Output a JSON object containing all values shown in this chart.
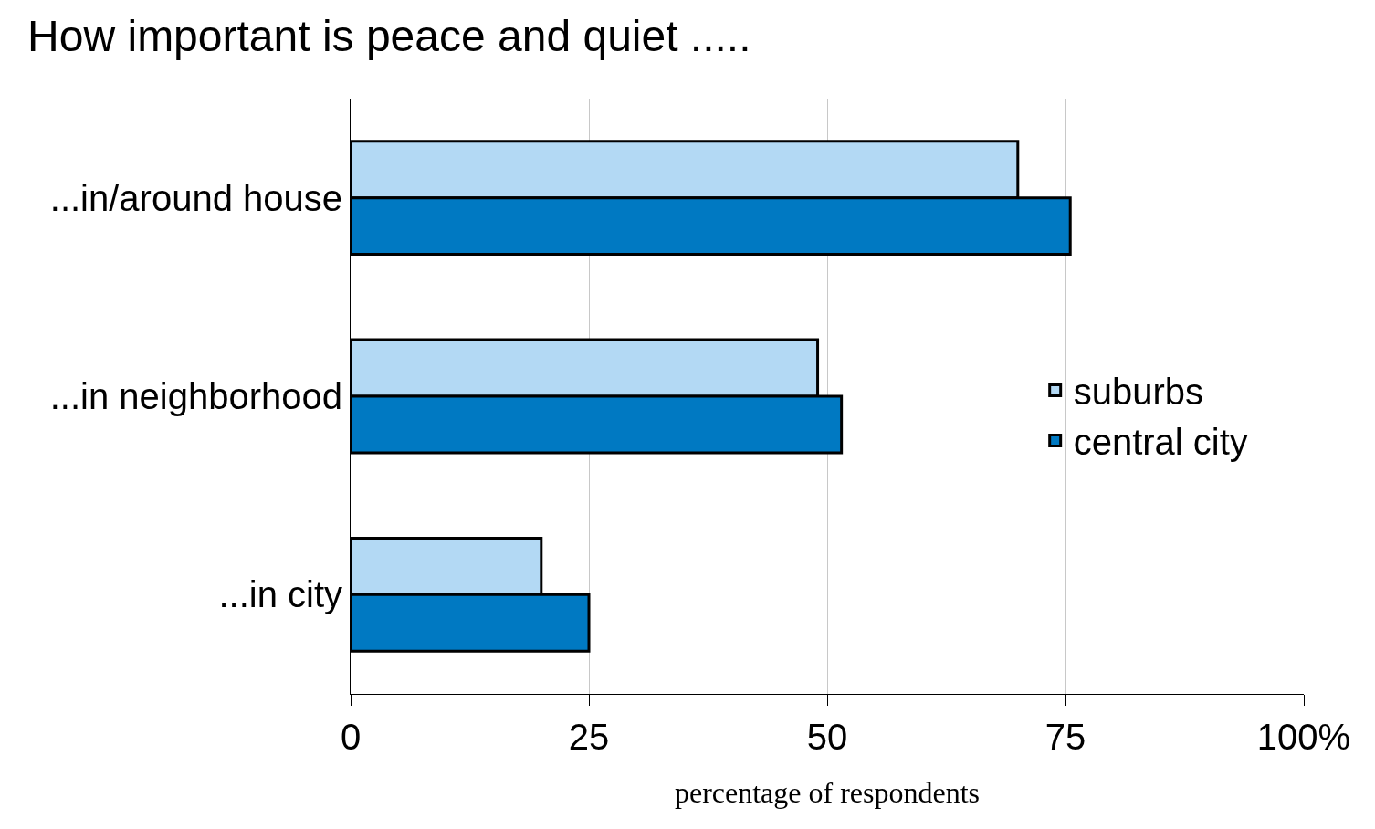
{
  "chart_data": {
    "type": "bar",
    "orientation": "horizontal",
    "title": "How important is peace and quiet .....",
    "xlabel": "percentage of respondents",
    "categories": [
      "...in/around house",
      "...in neighborhood",
      "...in city"
    ],
    "series": [
      {
        "name": "suburbs",
        "color": "#b3d9f4",
        "values": [
          70,
          49,
          20
        ]
      },
      {
        "name": "central city",
        "color": "#0079c2",
        "values": [
          75.5,
          51.5,
          25
        ]
      }
    ],
    "xlim": [
      0,
      100
    ],
    "xticks": [
      0,
      25,
      50,
      75,
      {
        "value": 100,
        "label": "100%"
      }
    ],
    "grid": "x",
    "legend": "right"
  }
}
